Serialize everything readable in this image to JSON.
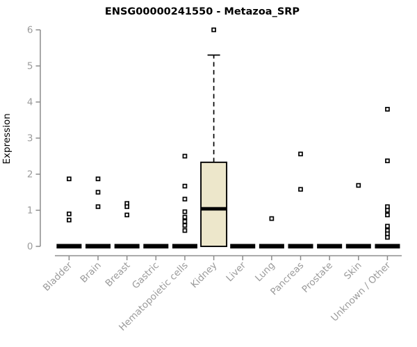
{
  "chart": {
    "title": "ENSG00000241550 - Metazoa_SRP",
    "ylabel": "Expression"
  },
  "chart_data": {
    "type": "boxplot",
    "title": "ENSG00000241550 - Metazoa_SRP",
    "xlabel": "",
    "ylabel": "Expression",
    "ylim": [
      0,
      6
    ],
    "yticks": [
      0,
      1,
      2,
      3,
      4,
      5,
      6
    ],
    "grid": false,
    "legend": "none",
    "categories": [
      "Bladder",
      "Brain",
      "Breast",
      "Gastric",
      "Hematopoietic cells",
      "Kidney",
      "Liver",
      "Lung",
      "Pancreas",
      "Prostate",
      "Skin",
      "Unknown / Other"
    ],
    "boxes": [
      {
        "label": "Bladder",
        "whisker_low": 0,
        "q1": 0,
        "median": 0,
        "q3": 0,
        "whisker_high": 0,
        "outliers": [
          1.87,
          0.9,
          0.73
        ]
      },
      {
        "label": "Brain",
        "whisker_low": 0,
        "q1": 0,
        "median": 0,
        "q3": 0,
        "whisker_high": 0,
        "outliers": [
          1.87,
          1.5,
          1.1
        ]
      },
      {
        "label": "Breast",
        "whisker_low": 0,
        "q1": 0,
        "median": 0,
        "q3": 0,
        "whisker_high": 0,
        "outliers": [
          1.19,
          1.1,
          0.87
        ]
      },
      {
        "label": "Gastric",
        "whisker_low": 0,
        "q1": 0,
        "median": 0,
        "q3": 0,
        "whisker_high": 0,
        "outliers": []
      },
      {
        "label": "Hematopoietic cells",
        "whisker_low": 0,
        "q1": 0,
        "median": 0,
        "q3": 0,
        "whisker_high": 0,
        "outliers": [
          2.5,
          1.67,
          1.31,
          0.96,
          0.81,
          0.69,
          0.58,
          0.44
        ]
      },
      {
        "label": "Kidney",
        "whisker_low": 0,
        "q1": 0,
        "median": 1.04,
        "q3": 2.33,
        "whisker_high": 5.3,
        "outliers": [
          6.0
        ]
      },
      {
        "label": "Liver",
        "whisker_low": 0,
        "q1": 0,
        "median": 0,
        "q3": 0,
        "whisker_high": 0,
        "outliers": []
      },
      {
        "label": "Lung",
        "whisker_low": 0,
        "q1": 0,
        "median": 0,
        "q3": 0,
        "whisker_high": 0,
        "outliers": [
          0.77
        ]
      },
      {
        "label": "Pancreas",
        "whisker_low": 0,
        "q1": 0,
        "median": 0,
        "q3": 0,
        "whisker_high": 0,
        "outliers": [
          2.56,
          1.58
        ]
      },
      {
        "label": "Prostate",
        "whisker_low": 0,
        "q1": 0,
        "median": 0,
        "q3": 0,
        "whisker_high": 0,
        "outliers": []
      },
      {
        "label": "Skin",
        "whisker_low": 0,
        "q1": 0,
        "median": 0,
        "q3": 0,
        "whisker_high": 0,
        "outliers": [
          1.69
        ]
      },
      {
        "label": "Unknown / Other",
        "whisker_low": 0,
        "q1": 0,
        "median": 0,
        "q3": 0,
        "whisker_high": 0,
        "outliers": [
          3.8,
          2.37,
          1.1,
          1.0,
          0.87,
          0.56,
          0.44,
          0.35,
          0.25
        ]
      }
    ],
    "style": {
      "title_color": "#000000",
      "axis_color": "#8c8c8c",
      "tick_label_color": "#9b9b9b",
      "box_fill": "#EDE7CB",
      "box_stroke": "#000000",
      "median_color": "#000000",
      "whisker_color": "#000000",
      "marker_fill": "#ffffff",
      "marker_stroke": "#000000",
      "background": "#ffffff"
    }
  }
}
